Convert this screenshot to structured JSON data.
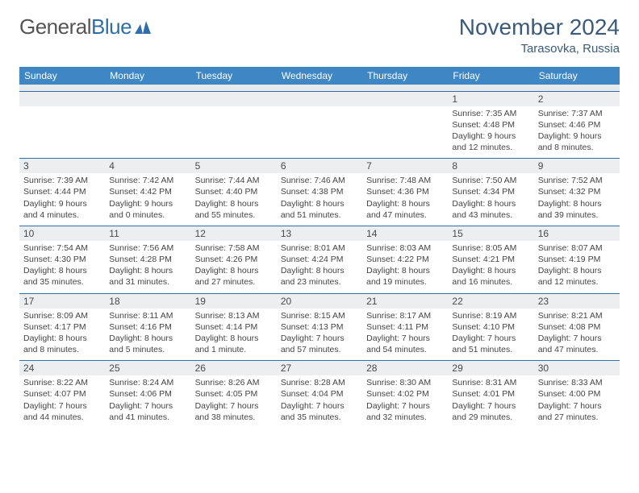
{
  "logo": {
    "word1": "General",
    "word2": "Blue"
  },
  "title": "November 2024",
  "location": "Tarasovka, Russia",
  "colors": {
    "header_bg": "#3e86c4",
    "header_text": "#ffffff",
    "rule": "#2f6fa9",
    "daynum_bg": "#eceeef",
    "page_bg": "#ffffff",
    "body_text": "#444444",
    "title_text": "#3b5b7a"
  },
  "dow": [
    "Sunday",
    "Monday",
    "Tuesday",
    "Wednesday",
    "Thursday",
    "Friday",
    "Saturday"
  ],
  "layout": {
    "cols": 7,
    "rows": 5,
    "first_day_col": 5,
    "days_in_month": 30
  },
  "days": {
    "1": {
      "sunrise": "7:35 AM",
      "sunset": "4:48 PM",
      "daylight": "9 hours and 12 minutes."
    },
    "2": {
      "sunrise": "7:37 AM",
      "sunset": "4:46 PM",
      "daylight": "9 hours and 8 minutes."
    },
    "3": {
      "sunrise": "7:39 AM",
      "sunset": "4:44 PM",
      "daylight": "9 hours and 4 minutes."
    },
    "4": {
      "sunrise": "7:42 AM",
      "sunset": "4:42 PM",
      "daylight": "9 hours and 0 minutes."
    },
    "5": {
      "sunrise": "7:44 AM",
      "sunset": "4:40 PM",
      "daylight": "8 hours and 55 minutes."
    },
    "6": {
      "sunrise": "7:46 AM",
      "sunset": "4:38 PM",
      "daylight": "8 hours and 51 minutes."
    },
    "7": {
      "sunrise": "7:48 AM",
      "sunset": "4:36 PM",
      "daylight": "8 hours and 47 minutes."
    },
    "8": {
      "sunrise": "7:50 AM",
      "sunset": "4:34 PM",
      "daylight": "8 hours and 43 minutes."
    },
    "9": {
      "sunrise": "7:52 AM",
      "sunset": "4:32 PM",
      "daylight": "8 hours and 39 minutes."
    },
    "10": {
      "sunrise": "7:54 AM",
      "sunset": "4:30 PM",
      "daylight": "8 hours and 35 minutes."
    },
    "11": {
      "sunrise": "7:56 AM",
      "sunset": "4:28 PM",
      "daylight": "8 hours and 31 minutes."
    },
    "12": {
      "sunrise": "7:58 AM",
      "sunset": "4:26 PM",
      "daylight": "8 hours and 27 minutes."
    },
    "13": {
      "sunrise": "8:01 AM",
      "sunset": "4:24 PM",
      "daylight": "8 hours and 23 minutes."
    },
    "14": {
      "sunrise": "8:03 AM",
      "sunset": "4:22 PM",
      "daylight": "8 hours and 19 minutes."
    },
    "15": {
      "sunrise": "8:05 AM",
      "sunset": "4:21 PM",
      "daylight": "8 hours and 16 minutes."
    },
    "16": {
      "sunrise": "8:07 AM",
      "sunset": "4:19 PM",
      "daylight": "8 hours and 12 minutes."
    },
    "17": {
      "sunrise": "8:09 AM",
      "sunset": "4:17 PM",
      "daylight": "8 hours and 8 minutes."
    },
    "18": {
      "sunrise": "8:11 AM",
      "sunset": "4:16 PM",
      "daylight": "8 hours and 5 minutes."
    },
    "19": {
      "sunrise": "8:13 AM",
      "sunset": "4:14 PM",
      "daylight": "8 hours and 1 minute."
    },
    "20": {
      "sunrise": "8:15 AM",
      "sunset": "4:13 PM",
      "daylight": "7 hours and 57 minutes."
    },
    "21": {
      "sunrise": "8:17 AM",
      "sunset": "4:11 PM",
      "daylight": "7 hours and 54 minutes."
    },
    "22": {
      "sunrise": "8:19 AM",
      "sunset": "4:10 PM",
      "daylight": "7 hours and 51 minutes."
    },
    "23": {
      "sunrise": "8:21 AM",
      "sunset": "4:08 PM",
      "daylight": "7 hours and 47 minutes."
    },
    "24": {
      "sunrise": "8:22 AM",
      "sunset": "4:07 PM",
      "daylight": "7 hours and 44 minutes."
    },
    "25": {
      "sunrise": "8:24 AM",
      "sunset": "4:06 PM",
      "daylight": "7 hours and 41 minutes."
    },
    "26": {
      "sunrise": "8:26 AM",
      "sunset": "4:05 PM",
      "daylight": "7 hours and 38 minutes."
    },
    "27": {
      "sunrise": "8:28 AM",
      "sunset": "4:04 PM",
      "daylight": "7 hours and 35 minutes."
    },
    "28": {
      "sunrise": "8:30 AM",
      "sunset": "4:02 PM",
      "daylight": "7 hours and 32 minutes."
    },
    "29": {
      "sunrise": "8:31 AM",
      "sunset": "4:01 PM",
      "daylight": "7 hours and 29 minutes."
    },
    "30": {
      "sunrise": "8:33 AM",
      "sunset": "4:00 PM",
      "daylight": "7 hours and 27 minutes."
    }
  },
  "labels": {
    "sunrise": "Sunrise: ",
    "sunset": "Sunset: ",
    "daylight": "Daylight: "
  }
}
